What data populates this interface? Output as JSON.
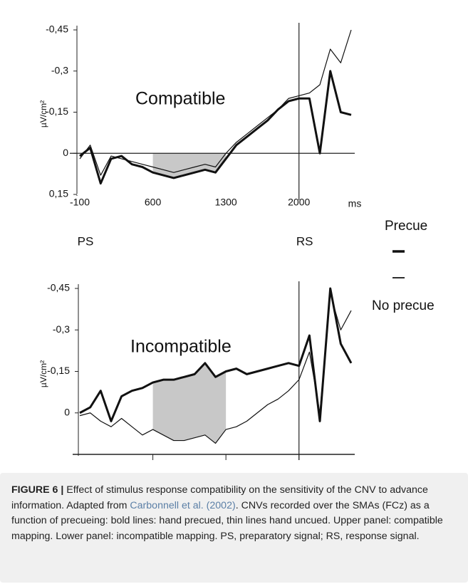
{
  "chart_data": [
    {
      "type": "line",
      "title": "Compatible",
      "ylabel": "µV/cm²",
      "xlabel": "ms",
      "annotations": [
        "PS",
        "RS"
      ],
      "x": [
        -100,
        0,
        100,
        200,
        300,
        400,
        500,
        600,
        700,
        800,
        900,
        1000,
        1100,
        1200,
        1300,
        1400,
        1500,
        1600,
        1700,
        1800,
        1900,
        2000,
        2100,
        2200,
        2300,
        2400,
        2500
      ],
      "xlim": [
        -100,
        2500
      ],
      "xticks": [
        -100,
        600,
        1300,
        2000
      ],
      "xtick_labels": true,
      "ylim": [
        -0.45,
        0.15
      ],
      "y_inverted": true,
      "yticks": [
        {
          "value": -0.45,
          "label": "-0,45"
        },
        {
          "value": -0.3,
          "label": "-0,3"
        },
        {
          "value": -0.15,
          "label": "-0,15"
        },
        0,
        {
          "value": 0.15,
          "label": "0,15"
        }
      ],
      "zero_line": true,
      "vline": 2000,
      "shade_range": [
        600,
        1300
      ],
      "shade_between": "zero",
      "legend": "right",
      "series": [
        {
          "name": "Precue",
          "color": "#111111",
          "width": 3,
          "values": [
            0.01,
            -0.02,
            0.11,
            0.02,
            0.01,
            0.04,
            0.05,
            0.07,
            0.08,
            0.09,
            0.08,
            0.07,
            0.06,
            0.07,
            0.02,
            -0.03,
            -0.06,
            -0.09,
            -0.12,
            -0.16,
            -0.19,
            -0.2,
            -0.2,
            0.0,
            -0.3,
            -0.15,
            -0.14
          ]
        },
        {
          "name": "No precue",
          "color": "#111111",
          "width": 1.2,
          "values": [
            0.02,
            -0.03,
            0.08,
            0.01,
            0.02,
            0.03,
            0.04,
            0.05,
            0.06,
            0.07,
            0.06,
            0.05,
            0.04,
            0.05,
            0.0,
            -0.04,
            -0.07,
            -0.1,
            -0.13,
            -0.16,
            -0.2,
            -0.21,
            -0.22,
            -0.25,
            -0.38,
            -0.33,
            -0.45
          ]
        }
      ]
    },
    {
      "type": "line",
      "title": "Incompatible",
      "ylabel": "µV/cm²",
      "x": [
        -100,
        0,
        100,
        200,
        300,
        400,
        500,
        600,
        700,
        800,
        900,
        1000,
        1100,
        1200,
        1300,
        1400,
        1500,
        1600,
        1700,
        1800,
        1900,
        2000,
        2100,
        2200,
        2300,
        2400,
        2500
      ],
      "xlim": [
        -100,
        2500
      ],
      "xticks": [
        600,
        1300,
        2000
      ],
      "xtick_labels": false,
      "ylim": [
        -0.45,
        0.15
      ],
      "y_inverted": true,
      "yticks": [
        {
          "value": -0.45,
          "label": "-0,45"
        },
        {
          "value": -0.3,
          "label": "-0,3"
        },
        {
          "value": -0.15,
          "label": "-0,15"
        },
        0
      ],
      "zero_line": false,
      "vline": 2000,
      "shade_range": [
        600,
        1300
      ],
      "shade_between": "series",
      "series": [
        {
          "color": "#111111",
          "width": 3,
          "values": [
            0.0,
            -0.02,
            -0.08,
            0.03,
            -0.06,
            -0.08,
            -0.09,
            -0.11,
            -0.12,
            -0.12,
            -0.13,
            -0.14,
            -0.18,
            -0.13,
            -0.15,
            -0.16,
            -0.14,
            -0.15,
            -0.16,
            -0.17,
            -0.18,
            -0.17,
            -0.28,
            0.03,
            -0.45,
            -0.25,
            -0.18
          ]
        },
        {
          "color": "#111111",
          "width": 1.2,
          "values": [
            0.01,
            0.0,
            0.03,
            0.05,
            0.02,
            0.05,
            0.08,
            0.06,
            0.08,
            0.1,
            0.1,
            0.09,
            0.08,
            0.11,
            0.06,
            0.05,
            0.03,
            0.0,
            -0.03,
            -0.05,
            -0.08,
            -0.12,
            -0.22,
            0.0,
            -0.43,
            -0.3,
            -0.37
          ]
        }
      ]
    }
  ],
  "caption": {
    "label": "FIGURE 6 |",
    "text_before": "Effect of stimulus response compatibility on the sensitivity of the CNV to advance information. Adapted from",
    "citation": "Carbonnell et al. (2002)",
    "text_after": ". CNVs recorded over the SMAs (FCz) as a function of precueing: bold lines: hand precued, thin lines hand uncued. Upper panel: compatible mapping. Lower panel: incompatible mapping. PS, preparatory signal; RS, response signal."
  }
}
